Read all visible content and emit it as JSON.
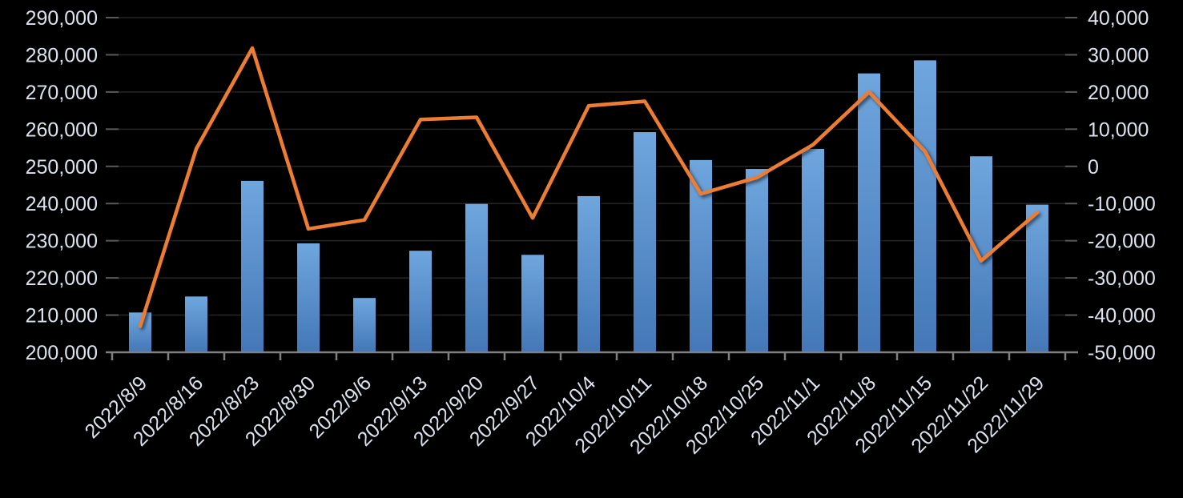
{
  "chart_data": {
    "type": "combo",
    "categories": [
      "2022/8/9",
      "2022/8/16",
      "2022/8/23",
      "2022/8/30",
      "2022/9/6",
      "2022/9/13",
      "2022/9/20",
      "2022/9/27",
      "2022/10/4",
      "2022/10/11",
      "2022/10/18",
      "2022/10/25",
      "2022/11/1",
      "2022/11/8",
      "2022/11/15",
      "2022/11/22",
      "2022/11/29"
    ],
    "series": [
      {
        "name": "bar-series",
        "type": "bar",
        "axis": "left",
        "color": "#5B9BD5",
        "values": [
          210700,
          215000,
          246100,
          229300,
          214600,
          227300,
          239900,
          226200,
          242000,
          259200,
          251700,
          249300,
          254700,
          275000,
          278500,
          252700,
          239700
        ]
      },
      {
        "name": "line-series",
        "type": "line",
        "axis": "right",
        "color": "#ED7D31",
        "values": [
          -43000,
          4700,
          31800,
          -16800,
          -14400,
          12600,
          13200,
          -13900,
          16300,
          17500,
          -7400,
          -3000,
          5800,
          20000,
          4000,
          -25400,
          -12400
        ]
      }
    ],
    "left_axis": {
      "min": 200000,
      "max": 290000,
      "step": 10000,
      "tick_labels": [
        "290,000",
        "280,000",
        "270,000",
        "260,000",
        "250,000",
        "240,000",
        "230,000",
        "220,000",
        "210,000",
        "200,000"
      ],
      "tick_values": [
        290000,
        280000,
        270000,
        260000,
        250000,
        240000,
        230000,
        220000,
        210000,
        200000
      ]
    },
    "right_axis": {
      "min": -50000,
      "max": 40000,
      "step": 10000,
      "tick_labels": [
        "40,000",
        "30,000",
        "20,000",
        "10,000",
        "0",
        "-10,000",
        "-20,000",
        "-30,000",
        "-40,000",
        "-50,000"
      ],
      "tick_values": [
        40000,
        30000,
        20000,
        10000,
        0,
        -10000,
        -20000,
        -30000,
        -40000,
        -50000
      ]
    },
    "grid": true,
    "legend": false,
    "x_tick_rotation": -45
  },
  "colors": {
    "background": "#000000",
    "gridline": "#262626",
    "axis_line": "#808080",
    "tick_mark": "#595959",
    "label_text": "#dae3ee",
    "bar_gradient_top": "#6FA6DD",
    "bar_gradient_bottom": "#4377B7",
    "line": "#ED7D31"
  }
}
